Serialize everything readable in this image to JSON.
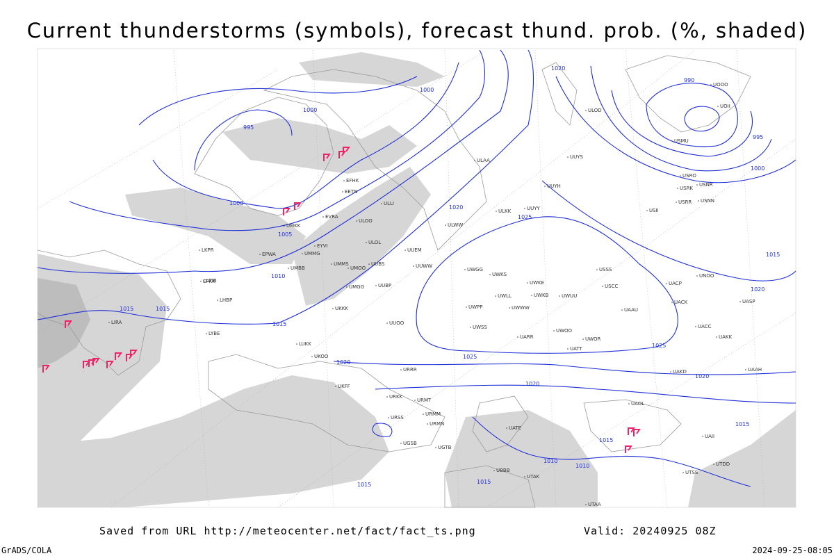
{
  "title": "Current thunderstorms (symbols), forecast thund. prob. (%, shaded)",
  "footer": {
    "source": "Saved from URL http://meteocenter.net/fact/fact_ts.png",
    "valid": "Valid: 20240925 08Z",
    "credit": "GrADS/COLA",
    "timestamp": "2024-09-25-08:05"
  },
  "isobar_labels": [
    995,
    1000,
    1000,
    1000,
    1005,
    1010,
    1015,
    1015,
    1015,
    1020,
    1020,
    1025,
    1025,
    1025,
    1020,
    1020,
    1020,
    1020,
    1015,
    1000,
    995,
    990,
    1015,
    1010,
    1010,
    1015,
    1015,
    1015
  ],
  "stations": [
    "ULAA",
    "UUYY",
    "ULKK",
    "UUYS",
    "UUYH",
    "ULLI",
    "ULOO",
    "EVRA",
    "EETN",
    "EFHK",
    "ULWW",
    "UUEM",
    "ULOL",
    "UMMG",
    "EYVI",
    "UMKK",
    "EPWA",
    "UMBB",
    "UMMS",
    "UUBS",
    "UMOO",
    "UUWW",
    "UWGG",
    "UWKS",
    "UWKE",
    "UUBP",
    "UMGG",
    "UKKK",
    "UWPP",
    "UWLL",
    "UWWW",
    "UWKB",
    "UWUU",
    "UUOO",
    "UWSS",
    "UARR",
    "UWOO",
    "UATT",
    "UWOR",
    "USSS",
    "USCC",
    "UACP",
    "UACK",
    "UAAU",
    "UACC",
    "UAKK",
    "UASP",
    "UNOO",
    "USII",
    "USRR",
    "USRK",
    "USRO",
    "USNR",
    "USNN",
    "USMU",
    "UOOO",
    "UOII",
    "ULOD",
    "LKPR",
    "EPKK",
    "LZIB",
    "LHBP",
    "LIRA",
    "LYBE",
    "LUKK",
    "UKOO",
    "URRR",
    "UKFF",
    "URKK",
    "URMT",
    "URMM",
    "URMN",
    "URSS",
    "UGSB",
    "UGTB",
    "UBBB",
    "UTAK",
    "UTAA",
    "UTSS",
    "UTDD",
    "UAII",
    "UAOL",
    "UATE",
    "UAKD",
    "UAAH"
  ]
}
